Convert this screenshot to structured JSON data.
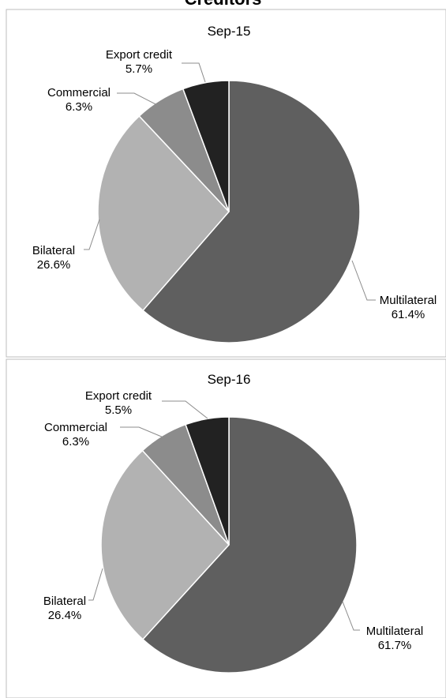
{
  "page": {
    "title": "Creditors"
  },
  "chart_data": [
    {
      "type": "pie",
      "title": "Sep-15",
      "slices": [
        {
          "name": "Multilateral",
          "value": 61.4,
          "label": "61.4%",
          "color": "#5f5f5f"
        },
        {
          "name": "Bilateral",
          "value": 26.6,
          "label": "26.6%",
          "color": "#b2b2b2"
        },
        {
          "name": "Commercial",
          "value": 6.3,
          "label": "6.3%",
          "color": "#8c8c8c"
        },
        {
          "name": "Export credit",
          "value": 5.7,
          "label": "5.7%",
          "color": "#222222"
        }
      ]
    },
    {
      "type": "pie",
      "title": "Sep-16",
      "slices": [
        {
          "name": "Multilateral",
          "value": 61.7,
          "label": "61.7%",
          "color": "#5f5f5f"
        },
        {
          "name": "Bilateral",
          "value": 26.4,
          "label": "26.4%",
          "color": "#b2b2b2"
        },
        {
          "name": "Commercial",
          "value": 6.3,
          "label": "6.3%",
          "color": "#8c8c8c"
        },
        {
          "name": "Export credit",
          "value": 5.5,
          "label": "5.5%",
          "color": "#222222"
        }
      ]
    }
  ]
}
